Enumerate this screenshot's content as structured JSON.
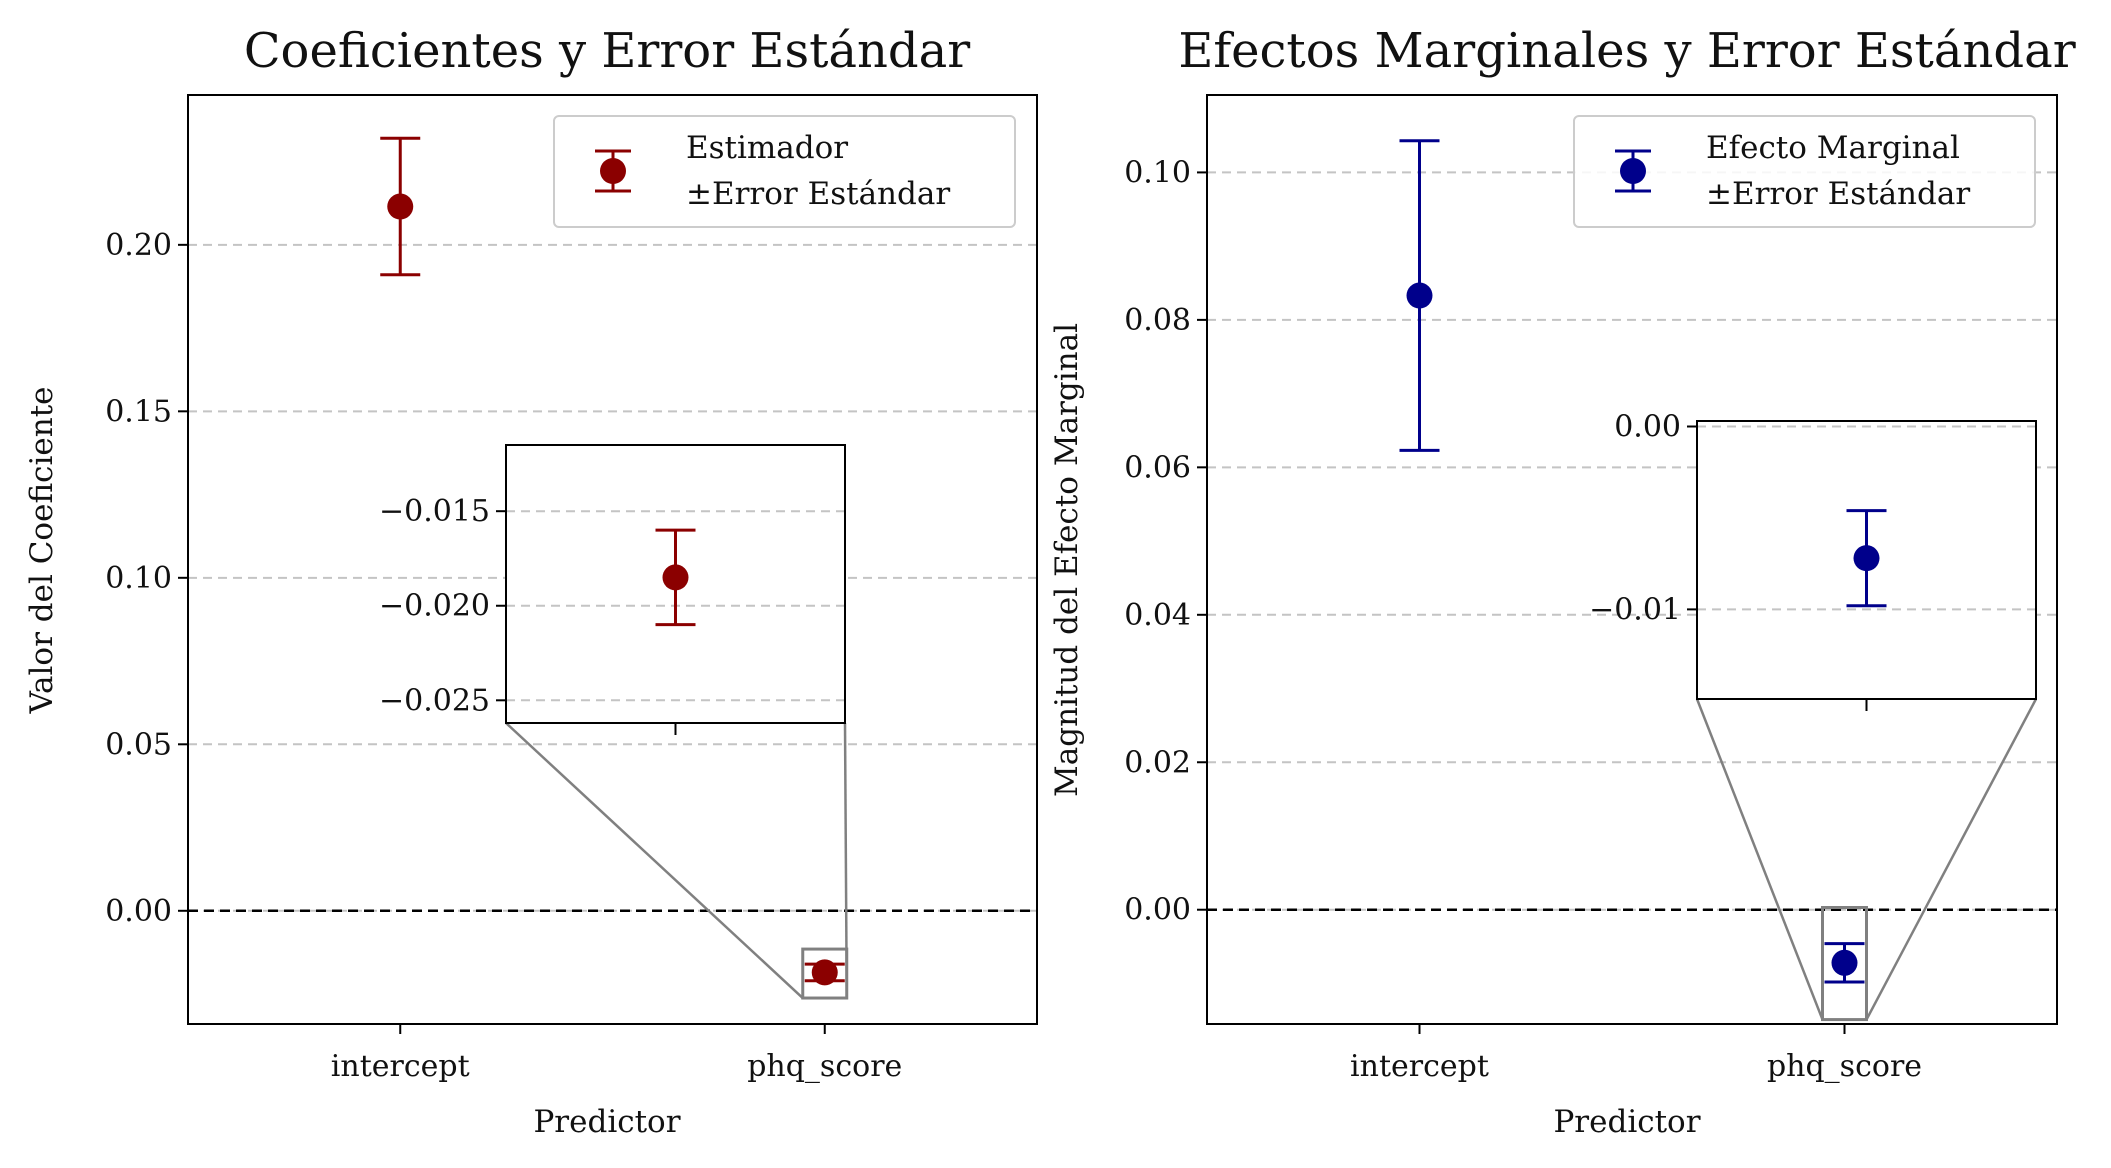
{
  "chart_data": [
    {
      "type": "errorbar",
      "title": "Coeficientes y Error Estándar",
      "xlabel": "Predictor",
      "ylabel": "Valor del Coeficiente",
      "categories": [
        "intercept",
        "phq_score"
      ],
      "ylim": [
        -0.034,
        0.245
      ],
      "yticks": [
        "0.00",
        "0.05",
        "0.10",
        "0.15",
        "0.20"
      ],
      "grid": "horizontal dashed",
      "reference_line": 0,
      "legend_position": "top-right",
      "legend": [
        "Estimador",
        "±Error Estándar"
      ],
      "color": "#8b0000",
      "series": [
        {
          "values": [
            0.2115,
            -0.0185
          ],
          "error": [
            0.0205,
            0.0025
          ]
        }
      ],
      "inset": {
        "category": "phq_score",
        "ylim": [
          -0.0262,
          -0.0115
        ],
        "yticks": [
          "−0.015",
          "−0.020",
          "−0.025"
        ],
        "value": -0.0185,
        "error": 0.0025
      }
    },
    {
      "type": "errorbar",
      "title": "Efectos Marginales y Error Estándar",
      "xlabel": "Predictor",
      "ylabel": "Magnitud del Efecto Marginal",
      "categories": [
        "intercept",
        "phq_score"
      ],
      "ylim": [
        -0.0155,
        0.1105
      ],
      "yticks": [
        "0.00",
        "0.02",
        "0.04",
        "0.06",
        "0.08",
        "0.10"
      ],
      "grid": "horizontal dashed",
      "reference_line": 0,
      "legend_position": "top-right",
      "legend": [
        "Efecto Marginal",
        "±Error Estándar"
      ],
      "color": "#00008b",
      "series": [
        {
          "values": [
            0.0833,
            -0.0072
          ],
          "error": [
            0.021,
            0.0026
          ]
        }
      ],
      "inset": {
        "category": "phq_score",
        "ylim": [
          -0.0149,
          0.0003
        ],
        "yticks": [
          "0.00",
          "−0.01"
        ],
        "value": -0.0072,
        "error": 0.0026
      }
    }
  ]
}
